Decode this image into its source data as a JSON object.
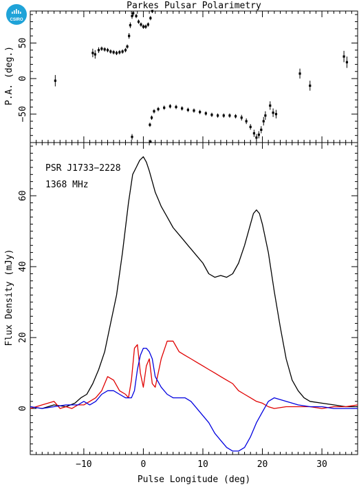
{
  "logo": {
    "text": "CSIRO",
    "color": "#1fa3d8"
  },
  "chart_data": {
    "type": "line",
    "title": "Parkes Pulsar Polarimetry",
    "xlabel": "Pulse Longitude (deg)",
    "xlim": [
      -19,
      36
    ],
    "x_ticks": [
      -10,
      0,
      10,
      20,
      30
    ],
    "annotations": [
      "PSR J1733−2228",
      "1368 MHz"
    ],
    "panels": [
      {
        "name": "pa",
        "ylabel": "P.A. (deg.)",
        "ylim": [
          -90,
          95
        ],
        "y_ticks": [
          -50,
          0,
          50
        ],
        "points": [
          {
            "x": -14.8,
            "y": -3,
            "err": 8
          },
          {
            "x": -8.5,
            "y": 36,
            "err": 6
          },
          {
            "x": -8.1,
            "y": 34,
            "err": 6
          },
          {
            "x": -7.5,
            "y": 40,
            "err": 4
          },
          {
            "x": -7.0,
            "y": 42,
            "err": 3
          },
          {
            "x": -6.5,
            "y": 41,
            "err": 3
          },
          {
            "x": -6.0,
            "y": 40,
            "err": 3
          },
          {
            "x": -5.5,
            "y": 38,
            "err": 3
          },
          {
            "x": -5.0,
            "y": 37,
            "err": 3
          },
          {
            "x": -4.5,
            "y": 36,
            "err": 3
          },
          {
            "x": -4.0,
            "y": 37,
            "err": 3
          },
          {
            "x": -3.5,
            "y": 38,
            "err": 3
          },
          {
            "x": -3.0,
            "y": 40,
            "err": 3
          },
          {
            "x": -2.7,
            "y": 45,
            "err": 3
          },
          {
            "x": -2.4,
            "y": 60,
            "err": 4
          },
          {
            "x": -2.2,
            "y": 75,
            "err": 4
          },
          {
            "x": -1.9,
            "y": 88,
            "err": 4
          },
          {
            "x": -1.7,
            "y": 92,
            "err": 4
          },
          {
            "x": -1.2,
            "y": 88,
            "err": 3
          },
          {
            "x": -0.8,
            "y": 80,
            "err": 3
          },
          {
            "x": -0.4,
            "y": 76,
            "err": 3
          },
          {
            "x": 0.0,
            "y": 73,
            "err": 3
          },
          {
            "x": 0.4,
            "y": 73,
            "err": 3
          },
          {
            "x": 0.8,
            "y": 76,
            "err": 3
          },
          {
            "x": 1.2,
            "y": 85,
            "err": 3
          },
          {
            "x": 1.5,
            "y": 95,
            "err": 3
          },
          {
            "x": -1.9,
            "y": -82,
            "err": 4
          },
          {
            "x": 1.2,
            "y": -89,
            "err": 3
          },
          {
            "x": 1.1,
            "y": -65,
            "err": 3
          },
          {
            "x": 1.4,
            "y": -55,
            "err": 3
          },
          {
            "x": 1.8,
            "y": -46,
            "err": 3
          },
          {
            "x": 2.5,
            "y": -43,
            "err": 3
          },
          {
            "x": 3.5,
            "y": -41,
            "err": 3
          },
          {
            "x": 4.5,
            "y": -39,
            "err": 3
          },
          {
            "x": 5.5,
            "y": -40,
            "err": 3
          },
          {
            "x": 6.5,
            "y": -42,
            "err": 3
          },
          {
            "x": 7.5,
            "y": -44,
            "err": 3
          },
          {
            "x": 8.5,
            "y": -45,
            "err": 3
          },
          {
            "x": 9.5,
            "y": -47,
            "err": 3
          },
          {
            "x": 10.5,
            "y": -49,
            "err": 3
          },
          {
            "x": 11.5,
            "y": -51,
            "err": 3
          },
          {
            "x": 12.5,
            "y": -52,
            "err": 3
          },
          {
            "x": 13.5,
            "y": -52,
            "err": 3
          },
          {
            "x": 14.5,
            "y": -52,
            "err": 3
          },
          {
            "x": 15.5,
            "y": -53,
            "err": 3
          },
          {
            "x": 16.5,
            "y": -55,
            "err": 4
          },
          {
            "x": 17.3,
            "y": -60,
            "err": 4
          },
          {
            "x": 18.0,
            "y": -68,
            "err": 4
          },
          {
            "x": 18.6,
            "y": -77,
            "err": 5
          },
          {
            "x": 19.0,
            "y": -83,
            "err": 5
          },
          {
            "x": 19.4,
            "y": -79,
            "err": 5
          },
          {
            "x": 19.8,
            "y": -72,
            "err": 5
          },
          {
            "x": 20.2,
            "y": -60,
            "err": 6
          },
          {
            "x": 20.5,
            "y": -52,
            "err": 6
          },
          {
            "x": 21.3,
            "y": -38,
            "err": 6
          },
          {
            "x": 21.8,
            "y": -48,
            "err": 6
          },
          {
            "x": 22.3,
            "y": -50,
            "err": 6
          },
          {
            "x": 26.3,
            "y": 7,
            "err": 7
          },
          {
            "x": 28.0,
            "y": -10,
            "err": 7
          },
          {
            "x": 33.7,
            "y": 31,
            "err": 8
          },
          {
            "x": 34.2,
            "y": 23,
            "err": 8
          }
        ]
      },
      {
        "name": "flux",
        "ylabel": "Flux Density (mJy)",
        "ylim": [
          -13,
          75
        ],
        "y_ticks": [
          0,
          20,
          40,
          60
        ],
        "series": [
          {
            "color": "#000000",
            "x": [
              -19,
              -17,
              -15,
              -13,
              -11.5,
              -10.5,
              -9.5,
              -8.5,
              -7.5,
              -6.5,
              -5.5,
              -4.5,
              -3.5,
              -2.5,
              -1.8,
              -1.2,
              -0.6,
              0,
              0.5,
              1,
              1.5,
              2,
              2.5,
              3,
              4,
              5,
              6,
              7,
              7.5,
              8,
              9,
              10,
              11,
              12,
              13,
              14,
              15,
              16,
              17,
              18,
              18.5,
              19,
              19.5,
              20,
              21,
              22,
              23,
              24,
              25,
              26,
              27,
              28,
              30,
              32,
              34,
              36
            ],
            "y": [
              0.5,
              0,
              1,
              0.5,
              1.5,
              3,
              4,
              7,
              11,
              16,
              24,
              32,
              44,
              58,
              66,
              68,
              70,
              71,
              69.5,
              67,
              64,
              61,
              59,
              57,
              54,
              51,
              49,
              47,
              46,
              45,
              43,
              41,
              38,
              37,
              37.5,
              37,
              38,
              41,
              46,
              52,
              55,
              56,
              55,
              52,
              44,
              33,
              23,
              14,
              8,
              5,
              3,
              2,
              1.5,
              1,
              0.5,
              0.5
            ]
          },
          {
            "color": "#e00000",
            "x": [
              -19,
              -17,
              -15,
              -14,
              -13,
              -12,
              -11,
              -10,
              -9,
              -8,
              -7,
              -6,
              -5,
              -4,
              -3,
              -2.5,
              -2,
              -1.5,
              -1,
              -0.5,
              0,
              0.5,
              1,
              1.5,
              2,
              3,
              4,
              5,
              6,
              7,
              8,
              9,
              10,
              11,
              12,
              13,
              14,
              15,
              16,
              17,
              18,
              19,
              20,
              21,
              22,
              24,
              26,
              28,
              30,
              32,
              34,
              36
            ],
            "y": [
              0,
              1,
              2,
              0,
              0.5,
              0,
              1,
              1,
              2,
              3,
              5,
              9,
              8,
              5,
              4,
              3,
              8,
              17,
              18,
              10,
              6,
              12,
              14,
              7,
              6,
              14,
              19,
              19,
              16,
              15,
              14,
              13,
              12,
              11,
              10,
              9,
              8,
              7,
              5,
              4,
              3,
              2,
              1.5,
              0.5,
              0,
              0.5,
              0.5,
              0.5,
              0,
              0.5,
              0.5,
              1
            ]
          },
          {
            "color": "#0000e0",
            "x": [
              -19,
              -17,
              -15,
              -13,
              -11,
              -10,
              -9,
              -8,
              -7,
              -6,
              -5,
              -4,
              -3,
              -2,
              -1.5,
              -1,
              -0.5,
              0,
              0.5,
              1,
              1.5,
              2,
              3,
              4,
              5,
              6,
              7,
              8,
              9,
              10,
              11,
              12,
              13,
              14,
              15,
              16,
              17,
              18,
              19,
              20,
              21,
              22,
              24,
              26,
              28,
              30,
              32,
              34,
              36
            ],
            "y": [
              0.5,
              0,
              0.5,
              1,
              1,
              2,
              1,
              2,
              4,
              5,
              5,
              4,
              3,
              3,
              5,
              11,
              15,
              17,
              17,
              16,
              14,
              9,
              6,
              4,
              3,
              3,
              3,
              2,
              0,
              -2,
              -4,
              -7,
              -9,
              -11,
              -12,
              -12,
              -11,
              -8,
              -4,
              -1,
              2,
              3,
              2,
              1,
              0.5,
              0.5,
              0,
              0,
              0
            ]
          }
        ]
      }
    ]
  }
}
